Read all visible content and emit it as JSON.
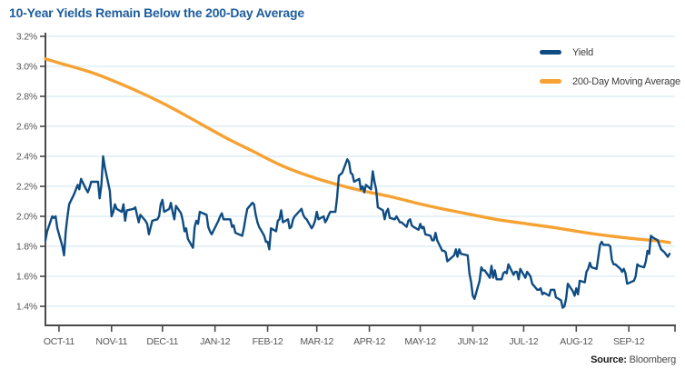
{
  "title": "10-Year Yields Remain Below the 200-Day Average",
  "source": {
    "label": "Source:",
    "value": " Bloomberg"
  },
  "colors": {
    "title": "#1c5c9d",
    "yield_line": "#0f4c82",
    "ma_line": "#f6a233",
    "grid": "#cde5ef",
    "axis": "#4a4a4a",
    "tick_text": "#555555",
    "legend_text": "#3c3c3c"
  },
  "chart_data": {
    "type": "line",
    "title": "10-Year Yields Remain Below the 200-Day Average",
    "source": "Bloomberg",
    "grid": true,
    "legend_position": "top-right",
    "y_axis": {
      "min": 1.4,
      "max": 3.2,
      "step": 0.2,
      "unit": "%",
      "tick_labels": [
        "3.2%",
        "3.0%",
        "2.8%",
        "2.6%",
        "2.4%",
        "2.2%",
        "2.0%",
        "1.8%",
        "1.6%",
        "1.4%"
      ]
    },
    "x_axis": {
      "start_day": 0,
      "end_day": 368,
      "ticks": [
        {
          "label": "OCT-11",
          "day": 8
        },
        {
          "label": "NOV-11",
          "day": 39
        },
        {
          "label": "DEC-11",
          "day": 69
        },
        {
          "label": "JAN-12",
          "day": 100
        },
        {
          "label": "FEB-12",
          "day": 131
        },
        {
          "label": "MAR-12",
          "day": 160
        },
        {
          "label": "APR-12",
          "day": 191
        },
        {
          "label": "MAY-12",
          "day": 221
        },
        {
          "label": "JUN-12",
          "day": 252
        },
        {
          "label": "JUL-12",
          "day": 282
        },
        {
          "label": "AUG-12",
          "day": 313
        },
        {
          "label": "SEP-12",
          "day": 344
        }
      ]
    },
    "series": [
      {
        "name": "Yield",
        "color": "#0f4c82",
        "width": 2.4,
        "smooth": false,
        "points": [
          [
            0,
            1.84
          ],
          [
            1,
            1.9
          ],
          [
            4,
            2.0
          ],
          [
            5,
            1.99
          ],
          [
            6,
            2.0
          ],
          [
            7,
            1.92
          ],
          [
            10,
            1.8
          ],
          [
            11,
            1.74
          ],
          [
            12,
            1.9
          ],
          [
            13,
            2.0
          ],
          [
            14,
            2.08
          ],
          [
            17,
            2.15
          ],
          [
            18,
            2.18
          ],
          [
            19,
            2.21
          ],
          [
            20,
            2.18
          ],
          [
            21,
            2.25
          ],
          [
            24,
            2.18
          ],
          [
            25,
            2.16
          ],
          [
            26,
            2.19
          ],
          [
            27,
            2.23
          ],
          [
            31,
            2.23
          ],
          [
            32,
            2.12
          ],
          [
            33,
            2.21
          ],
          [
            34,
            2.4
          ],
          [
            35,
            2.33
          ],
          [
            38,
            2.17
          ],
          [
            39,
            2.0
          ],
          [
            40,
            2.03
          ],
          [
            41,
            2.08
          ],
          [
            42,
            2.05
          ],
          [
            45,
            2.03
          ],
          [
            46,
            2.08
          ],
          [
            47,
            1.97
          ],
          [
            48,
            2.04
          ],
          [
            52,
            2.05
          ],
          [
            53,
            2.06
          ],
          [
            54,
            2.01
          ],
          [
            55,
            1.96
          ],
          [
            56,
            2.01
          ],
          [
            59,
            1.97
          ],
          [
            60,
            1.95
          ],
          [
            61,
            1.88
          ],
          [
            63,
            1.97
          ],
          [
            66,
            1.98
          ],
          [
            67,
            2.0
          ],
          [
            68,
            2.08
          ],
          [
            69,
            2.11
          ],
          [
            70,
            2.03
          ],
          [
            73,
            2.05
          ],
          [
            74,
            2.09
          ],
          [
            75,
            2.03
          ],
          [
            76,
            1.98
          ],
          [
            77,
            2.07
          ],
          [
            80,
            2.02
          ],
          [
            81,
            1.97
          ],
          [
            82,
            1.9
          ],
          [
            83,
            1.92
          ],
          [
            84,
            1.85
          ],
          [
            87,
            1.79
          ],
          [
            88,
            1.93
          ],
          [
            89,
            1.97
          ],
          [
            90,
            1.95
          ],
          [
            91,
            2.03
          ],
          [
            95,
            2.01
          ],
          [
            96,
            1.93
          ],
          [
            97,
            1.9
          ],
          [
            98,
            1.88
          ],
          [
            102,
            1.97
          ],
          [
            103,
            2.0
          ],
          [
            104,
            2.02
          ],
          [
            105,
            1.98
          ],
          [
            108,
            1.98
          ],
          [
            109,
            1.98
          ],
          [
            110,
            1.93
          ],
          [
            111,
            1.94
          ],
          [
            112,
            1.89
          ],
          [
            116,
            1.87
          ],
          [
            117,
            1.92
          ],
          [
            118,
            1.99
          ],
          [
            119,
            2.05
          ],
          [
            122,
            2.09
          ],
          [
            123,
            2.08
          ],
          [
            124,
            2.01
          ],
          [
            125,
            1.96
          ],
          [
            126,
            1.93
          ],
          [
            129,
            1.87
          ],
          [
            130,
            1.83
          ],
          [
            131,
            1.83
          ],
          [
            132,
            1.78
          ],
          [
            133,
            1.92
          ],
          [
            136,
            1.9
          ],
          [
            137,
            1.97
          ],
          [
            138,
            1.98
          ],
          [
            139,
            2.04
          ],
          [
            140,
            1.96
          ],
          [
            143,
            1.98
          ],
          [
            144,
            1.92
          ],
          [
            145,
            1.93
          ],
          [
            146,
            1.98
          ],
          [
            147,
            2.0
          ],
          [
            151,
            2.05
          ],
          [
            152,
            2.01
          ],
          [
            153,
            1.99
          ],
          [
            154,
            1.98
          ],
          [
            157,
            1.92
          ],
          [
            158,
            1.94
          ],
          [
            159,
            1.97
          ],
          [
            160,
            2.03
          ],
          [
            161,
            1.98
          ],
          [
            164,
            2.0
          ],
          [
            165,
            1.96
          ],
          [
            166,
            1.98
          ],
          [
            167,
            2.01
          ],
          [
            168,
            2.03
          ],
          [
            171,
            2.03
          ],
          [
            172,
            2.13
          ],
          [
            173,
            2.27
          ],
          [
            174,
            2.28
          ],
          [
            175,
            2.29
          ],
          [
            178,
            2.38
          ],
          [
            179,
            2.36
          ],
          [
            180,
            2.29
          ],
          [
            181,
            2.28
          ],
          [
            182,
            2.23
          ],
          [
            185,
            2.25
          ],
          [
            186,
            2.18
          ],
          [
            187,
            2.2
          ],
          [
            188,
            2.16
          ],
          [
            189,
            2.21
          ],
          [
            192,
            2.18
          ],
          [
            193,
            2.3
          ],
          [
            194,
            2.23
          ],
          [
            195,
            2.18
          ],
          [
            196,
            2.06
          ],
          [
            199,
            2.04
          ],
          [
            200,
            1.98
          ],
          [
            201,
            2.03
          ],
          [
            202,
            2.05
          ],
          [
            203,
            1.99
          ],
          [
            206,
            1.98
          ],
          [
            207,
            2.0
          ],
          [
            208,
            1.98
          ],
          [
            209,
            1.96
          ],
          [
            210,
            1.96
          ],
          [
            213,
            1.93
          ],
          [
            214,
            1.97
          ],
          [
            215,
            1.98
          ],
          [
            216,
            1.94
          ],
          [
            217,
            1.93
          ],
          [
            220,
            1.91
          ],
          [
            221,
            1.95
          ],
          [
            222,
            1.92
          ],
          [
            223,
            1.93
          ],
          [
            224,
            1.88
          ],
          [
            227,
            1.87
          ],
          [
            228,
            1.84
          ],
          [
            229,
            1.84
          ],
          [
            230,
            1.89
          ],
          [
            231,
            1.84
          ],
          [
            234,
            1.77
          ],
          [
            235,
            1.77
          ],
          [
            236,
            1.76
          ],
          [
            237,
            1.7
          ],
          [
            238,
            1.71
          ],
          [
            241,
            1.74
          ],
          [
            242,
            1.78
          ],
          [
            243,
            1.73
          ],
          [
            244,
            1.78
          ],
          [
            245,
            1.75
          ],
          [
            249,
            1.74
          ],
          [
            250,
            1.62
          ],
          [
            251,
            1.56
          ],
          [
            252,
            1.47
          ],
          [
            253,
            1.45
          ],
          [
            255,
            1.53
          ],
          [
            256,
            1.57
          ],
          [
            257,
            1.66
          ],
          [
            258,
            1.64
          ],
          [
            259,
            1.64
          ],
          [
            262,
            1.59
          ],
          [
            263,
            1.67
          ],
          [
            264,
            1.59
          ],
          [
            265,
            1.64
          ],
          [
            266,
            1.58
          ],
          [
            269,
            1.58
          ],
          [
            270,
            1.62
          ],
          [
            271,
            1.63
          ],
          [
            272,
            1.62
          ],
          [
            273,
            1.68
          ],
          [
            276,
            1.61
          ],
          [
            277,
            1.63
          ],
          [
            278,
            1.63
          ],
          [
            279,
            1.58
          ],
          [
            280,
            1.65
          ],
          [
            283,
            1.59
          ],
          [
            284,
            1.63
          ],
          [
            286,
            1.6
          ],
          [
            287,
            1.55
          ],
          [
            290,
            1.51
          ],
          [
            291,
            1.51
          ],
          [
            292,
            1.52
          ],
          [
            293,
            1.48
          ],
          [
            294,
            1.49
          ],
          [
            297,
            1.47
          ],
          [
            298,
            1.51
          ],
          [
            299,
            1.51
          ],
          [
            300,
            1.51
          ],
          [
            301,
            1.46
          ],
          [
            304,
            1.44
          ],
          [
            305,
            1.39
          ],
          [
            306,
            1.4
          ],
          [
            307,
            1.45
          ],
          [
            308,
            1.55
          ],
          [
            311,
            1.5
          ],
          [
            312,
            1.47
          ],
          [
            313,
            1.52
          ],
          [
            314,
            1.48
          ],
          [
            315,
            1.57
          ],
          [
            318,
            1.56
          ],
          [
            319,
            1.63
          ],
          [
            320,
            1.65
          ],
          [
            321,
            1.69
          ],
          [
            322,
            1.66
          ],
          [
            325,
            1.65
          ],
          [
            326,
            1.73
          ],
          [
            327,
            1.81
          ],
          [
            328,
            1.83
          ],
          [
            329,
            1.81
          ],
          [
            332,
            1.81
          ],
          [
            333,
            1.8
          ],
          [
            334,
            1.71
          ],
          [
            335,
            1.68
          ],
          [
            336,
            1.68
          ],
          [
            339,
            1.65
          ],
          [
            340,
            1.63
          ],
          [
            341,
            1.65
          ],
          [
            342,
            1.62
          ],
          [
            343,
            1.55
          ],
          [
            347,
            1.57
          ],
          [
            348,
            1.6
          ],
          [
            349,
            1.68
          ],
          [
            350,
            1.67
          ],
          [
            353,
            1.66
          ],
          [
            354,
            1.7
          ],
          [
            355,
            1.77
          ],
          [
            356,
            1.75
          ],
          [
            357,
            1.87
          ],
          [
            358,
            1.86
          ],
          [
            361,
            1.84
          ],
          [
            362,
            1.81
          ],
          [
            363,
            1.78
          ],
          [
            365,
            1.76
          ],
          [
            367,
            1.73
          ],
          [
            368,
            1.75
          ]
        ]
      },
      {
        "name": "200-Day Moving Average",
        "color": "#f6a233",
        "width": 3.4,
        "smooth": true,
        "points": [
          [
            0,
            3.05
          ],
          [
            9,
            3.02
          ],
          [
            27,
            2.96
          ],
          [
            43,
            2.89
          ],
          [
            59,
            2.81
          ],
          [
            75,
            2.72
          ],
          [
            91,
            2.62
          ],
          [
            107,
            2.52
          ],
          [
            123,
            2.43
          ],
          [
            139,
            2.34
          ],
          [
            155,
            2.27
          ],
          [
            171,
            2.215
          ],
          [
            187,
            2.17
          ],
          [
            204,
            2.13
          ],
          [
            220,
            2.085
          ],
          [
            236,
            2.045
          ],
          [
            252,
            2.01
          ],
          [
            268,
            1.975
          ],
          [
            284,
            1.95
          ],
          [
            300,
            1.925
          ],
          [
            316,
            1.895
          ],
          [
            332,
            1.87
          ],
          [
            348,
            1.85
          ],
          [
            362,
            1.835
          ],
          [
            368,
            1.825
          ]
        ]
      }
    ]
  }
}
